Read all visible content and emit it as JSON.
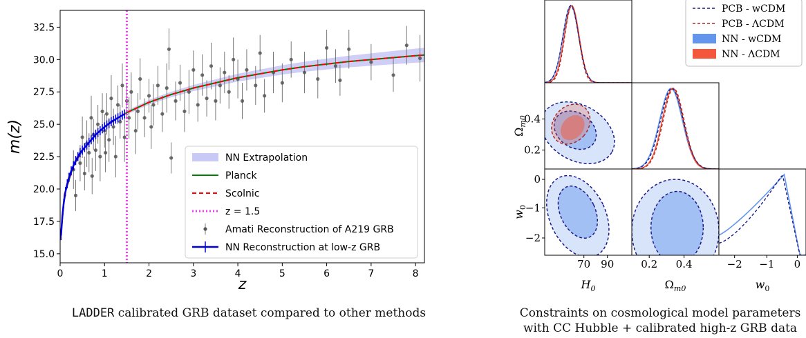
{
  "captions": {
    "left_prefix": "LADDER",
    "left_rest": " calibrated GRB dataset compared to other methods",
    "right_line1": "Constraints on cosmological model parameters",
    "right_line2": "with CC Hubble + calibrated high-z GRB data"
  },
  "chart_data": [
    {
      "type": "scatter",
      "xlabel": "z",
      "ylabel": "m(z)",
      "xlim": [
        0,
        8.2
      ],
      "ylim": [
        14.3,
        33.8
      ],
      "xticks": [
        0,
        1,
        2,
        3,
        4,
        5,
        6,
        7,
        8
      ],
      "yticks": [
        15.0,
        17.5,
        20.0,
        22.5,
        25.0,
        27.5,
        30.0,
        32.5
      ],
      "grid": false,
      "legend_position": "lower-right",
      "colors": {
        "band": "#c9c9f5",
        "planck": "#008000",
        "scolnic": "#ff0000",
        "zline": "#ff33ff",
        "points": "#555555",
        "nn": "#0000dd"
      },
      "legend": [
        {
          "label": "NN Extrapolation",
          "kind": "band"
        },
        {
          "label": "Planck",
          "kind": "solid-green"
        },
        {
          "label": "Scolnic",
          "kind": "dashed-red"
        },
        {
          "label": "z = 1.5",
          "kind": "dotted-magenta"
        },
        {
          "label": "Amati Reconstruction of A219 GRB",
          "kind": "errorbar-gray"
        },
        {
          "label": "NN Reconstruction at low-z GRB",
          "kind": "errorbar-blue"
        }
      ],
      "vertical_line_z": 1.5,
      "series": [
        {
          "name": "Planck",
          "x": [
            0.01,
            0.1,
            0.3,
            0.5,
            0.8,
            1.0,
            1.3,
            1.5,
            2.0,
            2.5,
            3.0,
            3.5,
            4.0,
            4.5,
            5.0,
            5.5,
            6.0,
            6.5,
            7.0,
            7.5,
            8.0,
            8.2
          ],
          "y": [
            16.2,
            19.6,
            21.8,
            23.0,
            24.2,
            24.8,
            25.5,
            25.9,
            26.7,
            27.3,
            27.8,
            28.2,
            28.6,
            28.9,
            29.2,
            29.45,
            29.65,
            29.85,
            30.0,
            30.15,
            30.3,
            30.35
          ]
        },
        {
          "name": "Scolnic",
          "x": [
            0.01,
            0.1,
            0.3,
            0.5,
            0.8,
            1.0,
            1.3,
            1.5,
            2.0,
            2.5,
            3.0,
            3.5,
            4.0,
            4.5,
            5.0,
            5.5,
            6.0,
            6.5,
            7.0,
            7.5,
            8.0,
            8.2
          ],
          "y": [
            16.2,
            19.6,
            21.8,
            23.0,
            24.2,
            24.8,
            25.5,
            25.9,
            26.7,
            27.3,
            27.8,
            28.2,
            28.6,
            28.9,
            29.2,
            29.45,
            29.65,
            29.85,
            30.0,
            30.15,
            30.3,
            30.35
          ]
        }
      ],
      "points": [
        [
          0.3,
          21.5,
          1.5
        ],
        [
          0.35,
          19.5,
          1.2
        ],
        [
          0.45,
          22.0,
          1.4
        ],
        [
          0.5,
          24.0,
          1.6
        ],
        [
          0.55,
          21.2,
          1.3
        ],
        [
          0.6,
          23.5,
          1.8
        ],
        [
          0.65,
          22.8,
          1.5
        ],
        [
          0.7,
          25.5,
          1.7
        ],
        [
          0.72,
          21.0,
          1.4
        ],
        [
          0.75,
          24.2,
          1.2
        ],
        [
          0.8,
          23.0,
          1.6
        ],
        [
          0.85,
          25.0,
          1.5
        ],
        [
          0.9,
          22.5,
          1.9
        ],
        [
          0.95,
          26.0,
          1.4
        ],
        [
          1.0,
          24.5,
          1.3
        ],
        [
          1.02,
          22.8,
          1.5
        ],
        [
          1.05,
          25.8,
          1.6
        ],
        [
          1.1,
          23.8,
          1.7
        ],
        [
          1.15,
          27.0,
          1.8
        ],
        [
          1.2,
          24.8,
          1.4
        ],
        [
          1.25,
          22.5,
          1.6
        ],
        [
          1.3,
          26.5,
          1.5
        ],
        [
          1.35,
          25.2,
          1.3
        ],
        [
          1.4,
          28.0,
          1.7
        ],
        [
          1.45,
          24.0,
          1.9
        ],
        [
          1.5,
          26.8,
          1.4
        ],
        [
          1.55,
          25.5,
          1.6
        ],
        [
          1.6,
          27.5,
          1.5
        ],
        [
          1.7,
          24.5,
          1.8
        ],
        [
          1.75,
          26.0,
          1.4
        ],
        [
          1.8,
          28.5,
          1.6
        ],
        [
          1.9,
          25.5,
          1.5
        ],
        [
          2.0,
          27.2,
          1.3
        ],
        [
          2.05,
          24.8,
          1.7
        ],
        [
          2.1,
          26.5,
          1.6
        ],
        [
          2.2,
          28.0,
          1.5
        ],
        [
          2.3,
          25.8,
          1.4
        ],
        [
          2.4,
          27.8,
          1.9
        ],
        [
          2.45,
          30.8,
          1.6
        ],
        [
          2.5,
          22.4,
          1.2
        ],
        [
          2.6,
          26.8,
          1.5
        ],
        [
          2.7,
          28.2,
          1.4
        ],
        [
          2.8,
          26.0,
          1.6
        ],
        [
          2.9,
          27.5,
          1.7
        ],
        [
          3.0,
          29.2,
          1.5
        ],
        [
          3.1,
          26.5,
          1.3
        ],
        [
          3.2,
          28.8,
          1.6
        ],
        [
          3.3,
          27.0,
          1.4
        ],
        [
          3.4,
          29.5,
          1.8
        ],
        [
          3.5,
          26.8,
          1.5
        ],
        [
          3.6,
          28.0,
          1.4
        ],
        [
          3.7,
          29.0,
          1.6
        ],
        [
          3.8,
          27.5,
          1.3
        ],
        [
          3.9,
          30.0,
          1.7
        ],
        [
          4.0,
          28.5,
          1.5
        ],
        [
          4.1,
          26.8,
          1.4
        ],
        [
          4.2,
          29.2,
          1.6
        ],
        [
          4.4,
          28.0,
          1.5
        ],
        [
          4.5,
          30.5,
          1.4
        ],
        [
          4.6,
          27.2,
          1.3
        ],
        [
          4.8,
          29.0,
          1.6
        ],
        [
          5.0,
          28.2,
          1.5
        ],
        [
          5.2,
          30.0,
          1.4
        ],
        [
          5.5,
          29.0,
          1.6
        ],
        [
          5.8,
          28.5,
          1.5
        ],
        [
          6.0,
          30.9,
          1.4
        ],
        [
          6.2,
          29.5,
          1.3
        ],
        [
          6.3,
          28.4,
          1.2
        ],
        [
          6.5,
          30.8,
          1.5
        ],
        [
          7.0,
          29.8,
          1.4
        ],
        [
          7.5,
          28.8,
          1.3
        ],
        [
          7.8,
          31.1,
          1.5
        ],
        [
          8.1,
          30.1,
          1.8
        ]
      ],
      "nn_points": [
        [
          0.02,
          16.4
        ],
        [
          0.05,
          17.9
        ],
        [
          0.08,
          18.9
        ],
        [
          0.12,
          19.8
        ],
        [
          0.16,
          20.4
        ],
        [
          0.2,
          20.9
        ],
        [
          0.25,
          21.4
        ],
        [
          0.3,
          21.8
        ],
        [
          0.35,
          22.2
        ],
        [
          0.4,
          22.5
        ],
        [
          0.45,
          22.8
        ],
        [
          0.5,
          23.0
        ],
        [
          0.55,
          23.2
        ],
        [
          0.6,
          23.4
        ],
        [
          0.65,
          23.6
        ],
        [
          0.7,
          23.8
        ],
        [
          0.75,
          24.0
        ],
        [
          0.8,
          24.2
        ],
        [
          0.85,
          24.35
        ],
        [
          0.9,
          24.5
        ],
        [
          0.95,
          24.65
        ],
        [
          1.0,
          24.8
        ],
        [
          1.05,
          24.95
        ],
        [
          1.1,
          25.05
        ],
        [
          1.15,
          25.2
        ],
        [
          1.2,
          25.3
        ],
        [
          1.25,
          25.4
        ],
        [
          1.3,
          25.5
        ],
        [
          1.35,
          25.6
        ],
        [
          1.4,
          25.7
        ],
        [
          1.45,
          25.8
        ]
      ]
    },
    {
      "type": "corner",
      "parameters": [
        "H_0",
        "Ω_m0",
        "w_0"
      ],
      "xticks": {
        "H_0": [
          "70",
          "90"
        ],
        "Ω_m0": [
          "0.2",
          "0.4"
        ],
        "w_0": [
          "−2",
          "−1",
          "0"
        ]
      },
      "yticks": {
        "Ω_m0": [
          "0.4",
          "0.2"
        ],
        "w_0": [
          "0",
          "−1",
          "−2"
        ]
      },
      "legend_position": "top-right",
      "colors": {
        "pcb_w": "#1a1a8c",
        "pcb_l": "#a52a2a",
        "nn_w": "#6495ed",
        "nn_l": "#f4573b"
      },
      "legend": [
        {
          "label": "PCB - wCDM",
          "kind": "dashed-navy"
        },
        {
          "label": "PCB - ΛCDM",
          "kind": "dashed-brown"
        },
        {
          "label": "NN - wCDM",
          "kind": "fill-blue"
        },
        {
          "label": "NN - ΛCDM",
          "kind": "fill-red"
        }
      ]
    }
  ]
}
